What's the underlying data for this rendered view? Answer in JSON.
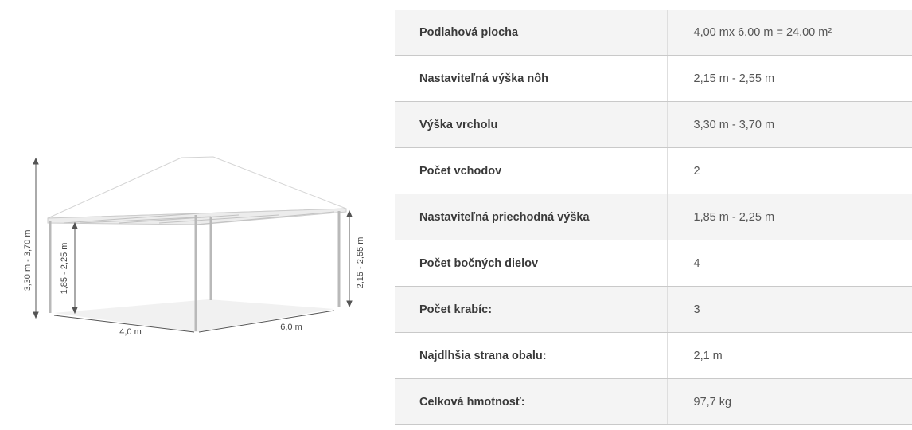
{
  "figure": {
    "dimensions": {
      "peak_height": "3,30 m - 3,70 m",
      "passage_height": "1,85 - 2,25 m",
      "leg_height": "2,15 - 2,55 m",
      "width": "4,0 m",
      "length": "6,0 m"
    }
  },
  "specs": [
    {
      "label": "Podlahová plocha",
      "value": "4,00 mx 6,00 m = 24,00 m²"
    },
    {
      "label": "Nastaviteľná výška nôh",
      "value": "2,15 m - 2,55 m"
    },
    {
      "label": "Výška vrcholu",
      "value": "3,30 m - 3,70 m"
    },
    {
      "label": "Počet vchodov",
      "value": "2"
    },
    {
      "label": "Nastaviteľná priechodná výška",
      "value": "1,85 m - 2,25 m"
    },
    {
      "label": "Počet bočných dielov",
      "value": "4"
    },
    {
      "label": "Počet krabíc:",
      "value": "3"
    },
    {
      "label": "Najdlhšia strana obalu:",
      "value": "2,1 m"
    },
    {
      "label": "Celková hmotnosť:",
      "value": "97,7 kg"
    }
  ]
}
